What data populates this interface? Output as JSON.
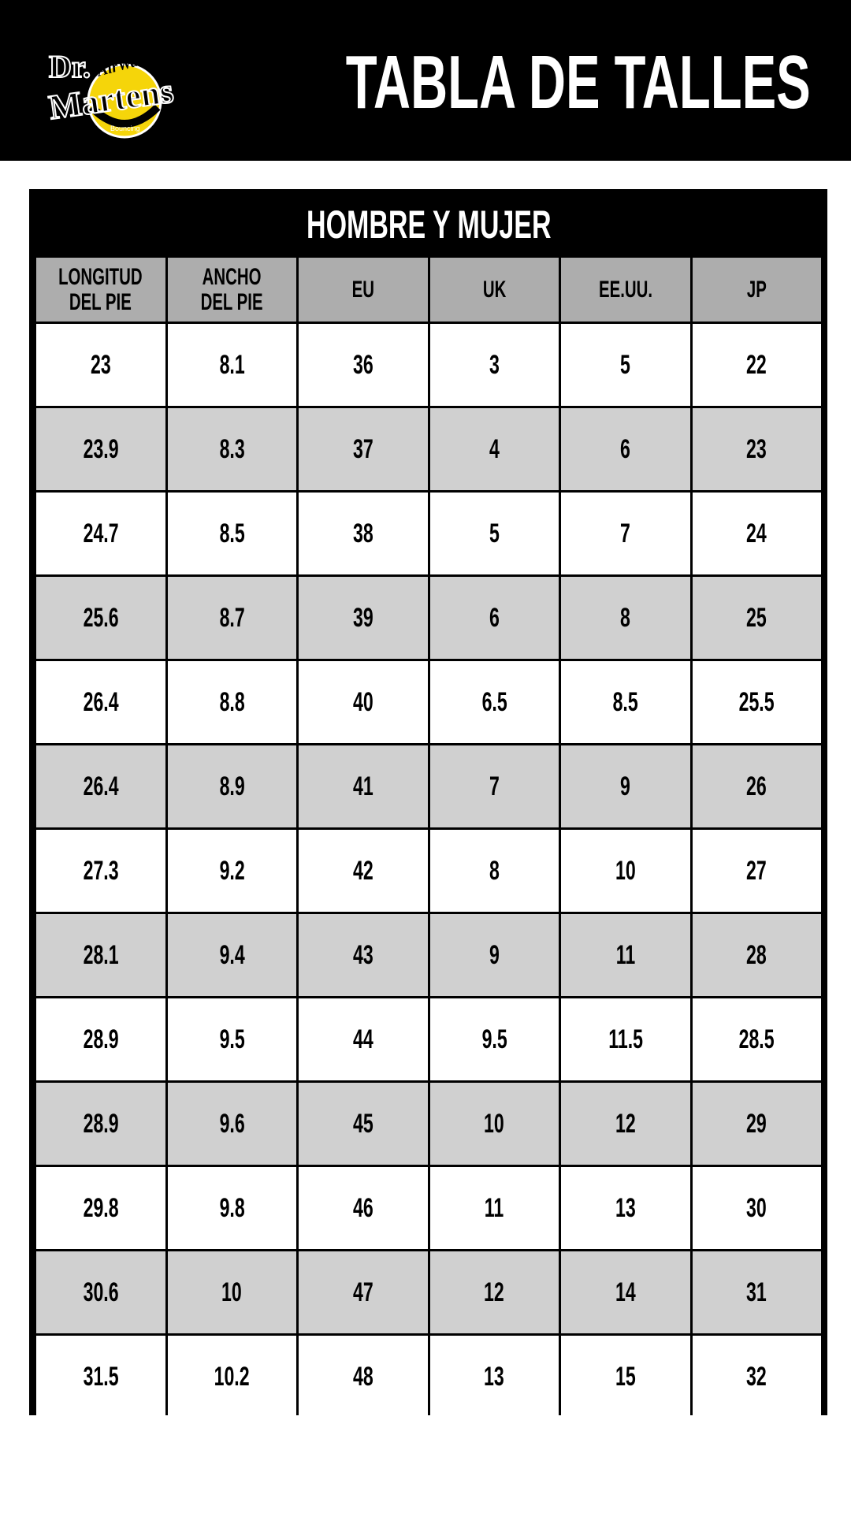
{
  "header": {
    "brand": "Dr. Martens AirWair Bouncing Soles",
    "title": "TABLA DE TALLES",
    "colors": {
      "background": "#000000",
      "logo_yellow": "#f5d50a"
    }
  },
  "table": {
    "title": "HOMBRE Y MUJER",
    "columns": [
      "LONGITUD DEL PIE",
      "ANCHO DEL PIE",
      "EU",
      "UK",
      "EE.UU.",
      "JP"
    ],
    "rows": [
      [
        "23",
        "8.1",
        "36",
        "3",
        "5",
        "22"
      ],
      [
        "23.9",
        "8.3",
        "37",
        "4",
        "6",
        "23"
      ],
      [
        "24.7",
        "8.5",
        "38",
        "5",
        "7",
        "24"
      ],
      [
        "25.6",
        "8.7",
        "39",
        "6",
        "8",
        "25"
      ],
      [
        "26.4",
        "8.8",
        "40",
        "6.5",
        "8.5",
        "25.5"
      ],
      [
        "26.4",
        "8.9",
        "41",
        "7",
        "9",
        "26"
      ],
      [
        "27.3",
        "9.2",
        "42",
        "8",
        "10",
        "27"
      ],
      [
        "28.1",
        "9.4",
        "43",
        "9",
        "11",
        "28"
      ],
      [
        "28.9",
        "9.5",
        "44",
        "9.5",
        "11.5",
        "28.5"
      ],
      [
        "28.9",
        "9.6",
        "45",
        "10",
        "12",
        "29"
      ],
      [
        "29.8",
        "9.8",
        "46",
        "11",
        "13",
        "30"
      ],
      [
        "30.6",
        "10",
        "47",
        "12",
        "14",
        "31"
      ],
      [
        "31.5",
        "10.2",
        "48",
        "13",
        "15",
        "32"
      ]
    ],
    "colors": {
      "header_cell": "#adadad",
      "alt_row": "#d0d0d0",
      "row": "#ffffff",
      "border": "#000000"
    }
  }
}
